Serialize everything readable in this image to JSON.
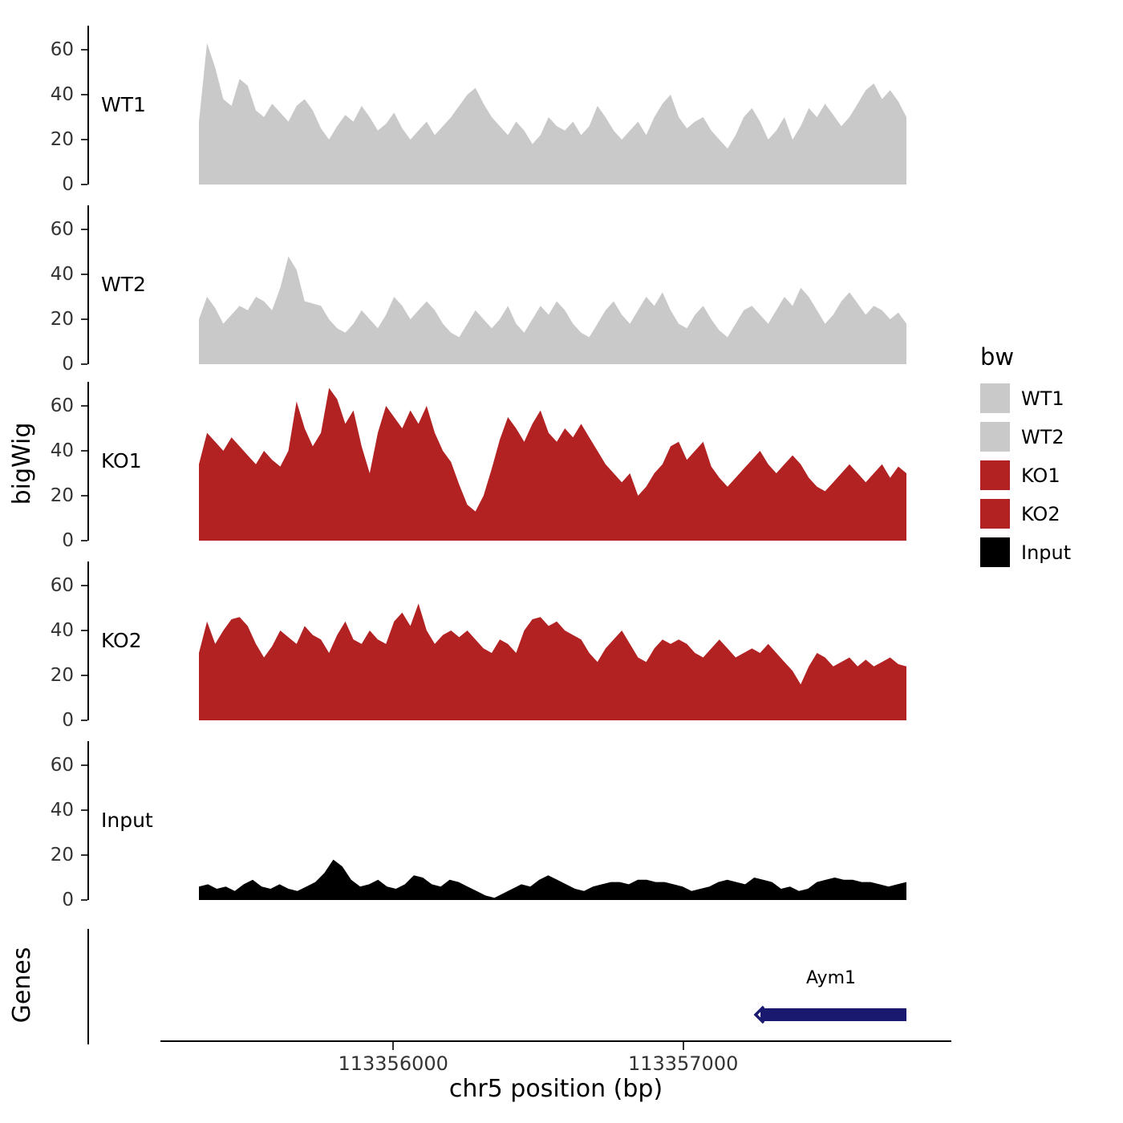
{
  "chart_data": {
    "type": "area",
    "title": "",
    "xlabel": "chr5 position (bp)",
    "ylabel": "bigWig",
    "x_range": [
      113355330,
      113357770
    ],
    "x_ticks": [
      113356000,
      113357000
    ],
    "x_tick_labels": [
      "113356000",
      "113357000"
    ],
    "y_ticks": [
      0,
      20,
      40,
      60
    ],
    "ylim": [
      0,
      70
    ],
    "grid": false,
    "legend_position": "right",
    "tracks": [
      {
        "name": "WT1",
        "color": "#C9C9C9",
        "values": [
          28,
          63,
          52,
          38,
          35,
          47,
          44,
          33,
          30,
          36,
          32,
          28,
          35,
          38,
          33,
          25,
          20,
          26,
          31,
          28,
          35,
          30,
          24,
          27,
          32,
          25,
          20,
          24,
          28,
          22,
          26,
          30,
          35,
          40,
          43,
          36,
          30,
          26,
          22,
          28,
          24,
          18,
          22,
          30,
          26,
          24,
          28,
          22,
          26,
          35,
          30,
          24,
          20,
          24,
          28,
          22,
          30,
          36,
          40,
          30,
          25,
          28,
          30,
          24,
          20,
          16,
          22,
          30,
          34,
          28,
          20,
          24,
          30,
          20,
          26,
          34,
          30,
          36,
          31,
          26,
          30,
          36,
          42,
          45,
          38,
          42,
          37,
          30
        ]
      },
      {
        "name": "WT2",
        "color": "#C9C9C9",
        "values": [
          20,
          30,
          25,
          18,
          22,
          26,
          24,
          30,
          28,
          24,
          34,
          48,
          42,
          28,
          27,
          26,
          20,
          16,
          14,
          18,
          24,
          20,
          16,
          22,
          30,
          26,
          20,
          24,
          28,
          24,
          18,
          14,
          12,
          18,
          24,
          20,
          16,
          20,
          26,
          18,
          14,
          20,
          26,
          22,
          28,
          24,
          18,
          14,
          12,
          18,
          24,
          28,
          22,
          18,
          24,
          30,
          26,
          32,
          24,
          18,
          16,
          22,
          26,
          20,
          15,
          12,
          18,
          24,
          26,
          22,
          18,
          24,
          30,
          26,
          34,
          30,
          24,
          18,
          22,
          28,
          32,
          27,
          22,
          26,
          24,
          20,
          23,
          18
        ]
      },
      {
        "name": "KO1",
        "color": "#B22222",
        "values": [
          34,
          48,
          44,
          40,
          46,
          42,
          38,
          34,
          40,
          36,
          33,
          40,
          62,
          50,
          42,
          48,
          68,
          63,
          52,
          58,
          42,
          30,
          48,
          60,
          55,
          50,
          58,
          52,
          60,
          48,
          40,
          35,
          25,
          16,
          13,
          20,
          32,
          45,
          55,
          50,
          44,
          52,
          58,
          48,
          44,
          50,
          46,
          52,
          46,
          40,
          34,
          30,
          26,
          30,
          20,
          24,
          30,
          34,
          42,
          44,
          36,
          40,
          44,
          33,
          28,
          24,
          28,
          32,
          36,
          40,
          34,
          30,
          34,
          38,
          34,
          28,
          24,
          22,
          26,
          30,
          34,
          30,
          26,
          30,
          34,
          28,
          33,
          30
        ]
      },
      {
        "name": "KO2",
        "color": "#B22222",
        "values": [
          30,
          44,
          34,
          40,
          45,
          46,
          42,
          34,
          28,
          33,
          40,
          37,
          34,
          42,
          38,
          36,
          30,
          38,
          44,
          36,
          34,
          40,
          36,
          34,
          44,
          48,
          42,
          52,
          40,
          34,
          38,
          40,
          37,
          40,
          36,
          32,
          30,
          36,
          34,
          30,
          40,
          45,
          46,
          42,
          44,
          40,
          38,
          36,
          30,
          26,
          32,
          36,
          40,
          34,
          28,
          26,
          32,
          36,
          34,
          36,
          34,
          30,
          28,
          32,
          36,
          32,
          28,
          30,
          32,
          30,
          34,
          30,
          26,
          22,
          16,
          24,
          30,
          28,
          24,
          26,
          28,
          24,
          27,
          24,
          26,
          28,
          25,
          24
        ]
      },
      {
        "name": "Input",
        "color": "#000000",
        "values": [
          6,
          7,
          5,
          6,
          4,
          7,
          9,
          6,
          5,
          7,
          5,
          4,
          6,
          8,
          12,
          18,
          15,
          9,
          6,
          7,
          9,
          6,
          5,
          7,
          11,
          10,
          7,
          6,
          9,
          8,
          6,
          4,
          2,
          1,
          3,
          5,
          7,
          6,
          9,
          11,
          9,
          7,
          5,
          4,
          6,
          7,
          8,
          8,
          7,
          9,
          9,
          8,
          8,
          7,
          6,
          4,
          5,
          6,
          8,
          9,
          8,
          7,
          10,
          9,
          8,
          5,
          6,
          4,
          5,
          8,
          9,
          10,
          9,
          9,
          8,
          8,
          7,
          6,
          7,
          8
        ]
      }
    ],
    "genes_track": {
      "axis_label": "Genes",
      "genes": [
        {
          "name": "Aym1",
          "start": 113357250,
          "end": 113357790,
          "strand": "-",
          "color": "#191970"
        }
      ]
    },
    "legend": {
      "title": "bw",
      "entries": [
        {
          "label": "WT1",
          "color": "#C9C9C9"
        },
        {
          "label": "WT2",
          "color": "#C9C9C9"
        },
        {
          "label": "KO1",
          "color": "#B22222"
        },
        {
          "label": "KO2",
          "color": "#B22222"
        },
        {
          "label": "Input",
          "color": "#000000"
        }
      ]
    }
  }
}
